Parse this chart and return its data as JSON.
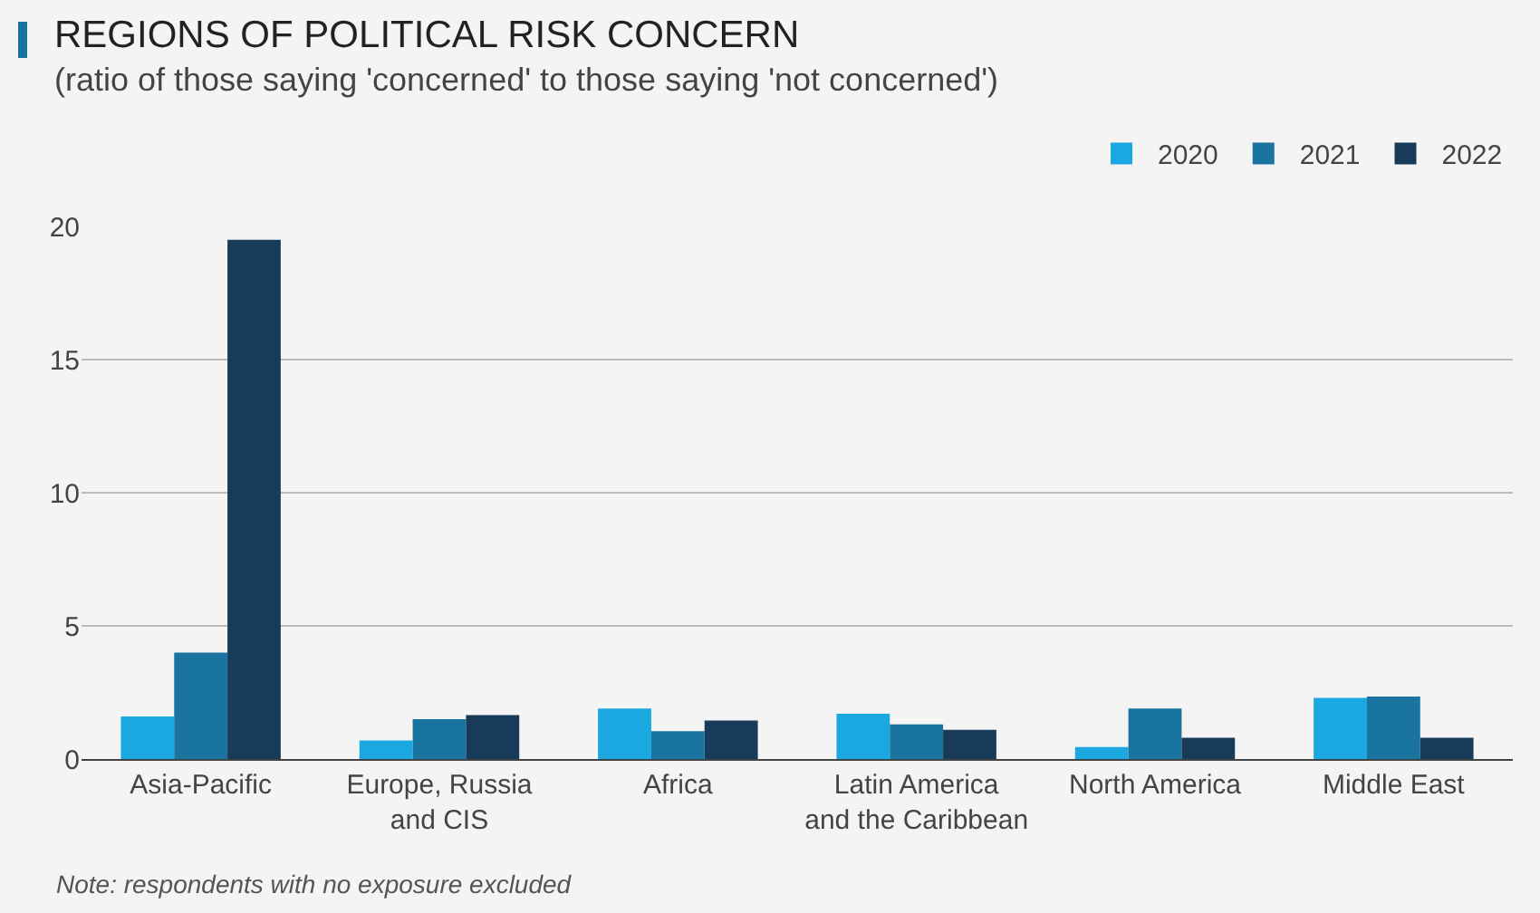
{
  "chart_data": {
    "type": "bar",
    "title": "REGIONS OF POLITICAL RISK CONCERN",
    "subtitle": "(ratio of those saying 'concerned' to those saying 'not concerned')",
    "categories": [
      "Asia-Pacific",
      "Europe, Russia\nand CIS",
      "Africa",
      "Latin America\nand the Caribbean",
      "North America",
      "Middle East"
    ],
    "series": [
      {
        "name": "2020",
        "color": "#1ba7e0",
        "values": [
          1.6,
          0.7,
          1.9,
          1.7,
          0.45,
          2.3
        ]
      },
      {
        "name": "2021",
        "color": "#1a74a0",
        "values": [
          4.0,
          1.5,
          1.05,
          1.3,
          1.9,
          2.35
        ]
      },
      {
        "name": "2022",
        "color": "#173b58",
        "values": [
          19.5,
          1.65,
          1.45,
          1.1,
          0.8,
          0.8
        ]
      }
    ],
    "ylim": [
      0,
      20
    ],
    "yticks": [
      0,
      5,
      10,
      15,
      20
    ],
    "grid": "y",
    "legend": "top right",
    "annotations": [
      "Note: respondents with no exposure excluded"
    ]
  }
}
